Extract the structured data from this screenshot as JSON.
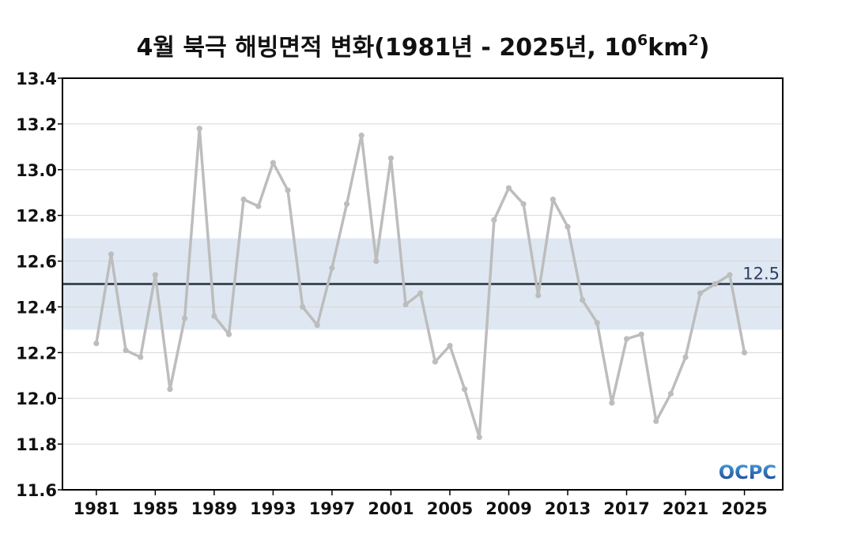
{
  "chart_data": {
    "type": "line",
    "title": {
      "main": "4월 북극 해빙면적 변화(1981년 - 2025년, 10",
      "sup1": "6",
      "unit": "km",
      "sup2": "2",
      "close": ")"
    },
    "xlabel": "",
    "ylabel": "",
    "ylim": [
      11.6,
      13.4
    ],
    "xlim": [
      1978.7,
      2027.6
    ],
    "yticks": [
      "11.6",
      "11.8",
      "12.0",
      "12.2",
      "12.4",
      "12.6",
      "12.8",
      "13.0",
      "13.2",
      "13.4"
    ],
    "xticks": [
      "1981",
      "1985",
      "1989",
      "1993",
      "1997",
      "2001",
      "2005",
      "2009",
      "2013",
      "2017",
      "2021",
      "2025"
    ],
    "grid": true,
    "series": [
      {
        "color": "#bdbdbd",
        "x": [
          1981,
          1982,
          1983,
          1984,
          1985,
          1986,
          1987,
          1988,
          1989,
          1990,
          1991,
          1992,
          1993,
          1994,
          1995,
          1996,
          1997,
          1998,
          1999,
          2000,
          2001,
          2002,
          2003,
          2004,
          2005,
          2006,
          2007,
          2008,
          2009,
          2010,
          2011,
          2012,
          2013,
          2014,
          2015,
          2016,
          2017,
          2018,
          2019,
          2020,
          2021,
          2022,
          2023,
          2024,
          2025
        ],
        "values": [
          12.24,
          12.63,
          12.21,
          12.18,
          12.54,
          12.04,
          12.35,
          13.18,
          12.36,
          12.28,
          12.87,
          12.84,
          13.03,
          12.91,
          12.4,
          12.32,
          12.57,
          12.85,
          13.15,
          12.6,
          13.05,
          12.41,
          12.46,
          12.16,
          12.23,
          12.04,
          11.83,
          12.78,
          12.92,
          12.85,
          12.45,
          12.87,
          12.75,
          12.43,
          12.33,
          11.98,
          12.26,
          12.28,
          11.9,
          12.02,
          12.18,
          12.46,
          12.5,
          12.54,
          12.2
        ]
      }
    ],
    "reference_line": {
      "value": 12.5,
      "label": "12.5",
      "color": "#3d4a58"
    },
    "band": {
      "low": 12.3,
      "high": 12.7,
      "color": "#dfe8f2"
    }
  },
  "logo": {
    "text": "OCPC",
    "color_top": "#4aa3df",
    "color_bottom": "#1a3f8f"
  }
}
